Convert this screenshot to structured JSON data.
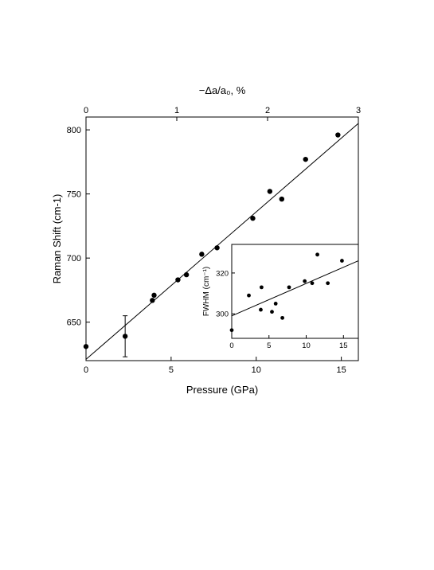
{
  "chart_data": [
    {
      "type": "scatter",
      "xlabel": "Pressure (GPa)",
      "ylabel": "Raman Shift (cm-1)",
      "top_xlabel": "−Δa/a₀, %",
      "xlim": [
        0,
        16
      ],
      "ylim": [
        620,
        810
      ],
      "top_xlim": [
        0,
        3
      ],
      "x_ticks": [
        0,
        5,
        10,
        15
      ],
      "y_ticks": [
        650,
        700,
        750,
        800
      ],
      "top_x_ticks": [
        0,
        1,
        2,
        3
      ],
      "points": [
        {
          "x": 0.0,
          "y": 631
        },
        {
          "x": 2.3,
          "y": 639,
          "error": 16
        },
        {
          "x": 3.9,
          "y": 667
        },
        {
          "x": 4.0,
          "y": 671
        },
        {
          "x": 5.4,
          "y": 683
        },
        {
          "x": 5.9,
          "y": 687
        },
        {
          "x": 6.8,
          "y": 703
        },
        {
          "x": 7.7,
          "y": 708
        },
        {
          "x": 9.8,
          "y": 731
        },
        {
          "x": 10.8,
          "y": 752
        },
        {
          "x": 11.5,
          "y": 746
        },
        {
          "x": 12.9,
          "y": 777
        },
        {
          "x": 14.8,
          "y": 796
        }
      ],
      "fit_line": {
        "x": [
          0,
          16
        ],
        "y": [
          621,
          805
        ]
      }
    },
    {
      "type": "scatter",
      "title": "",
      "ylabel": "FWHM (cm⁻¹)",
      "xlim": [
        0,
        17
      ],
      "ylim": [
        288,
        334
      ],
      "x_ticks": [
        0,
        5,
        10,
        15
      ],
      "y_ticks": [
        300,
        320
      ],
      "points": [
        {
          "x": 0.0,
          "y": 292
        },
        {
          "x": 2.3,
          "y": 309
        },
        {
          "x": 3.9,
          "y": 302
        },
        {
          "x": 4.0,
          "y": 313
        },
        {
          "x": 5.4,
          "y": 301
        },
        {
          "x": 5.9,
          "y": 305
        },
        {
          "x": 6.8,
          "y": 298
        },
        {
          "x": 7.7,
          "y": 313
        },
        {
          "x": 9.8,
          "y": 316
        },
        {
          "x": 10.8,
          "y": 315
        },
        {
          "x": 11.5,
          "y": 329
        },
        {
          "x": 12.9,
          "y": 315
        },
        {
          "x": 14.8,
          "y": 326
        }
      ],
      "fit_line": {
        "x": [
          0,
          17
        ],
        "y": [
          299,
          326
        ]
      }
    }
  ]
}
